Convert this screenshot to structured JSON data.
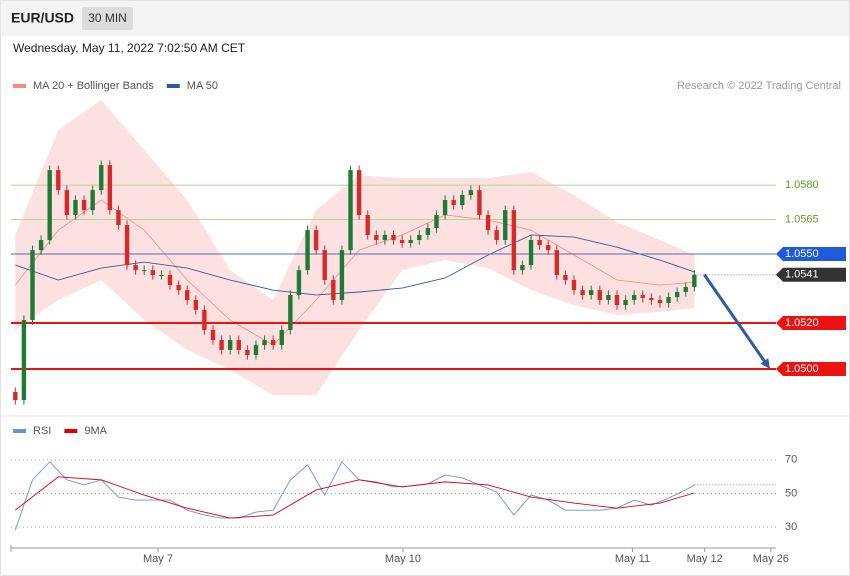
{
  "header": {
    "symbol": "EUR/USD",
    "interval": "30 MIN",
    "timestamp": "Wednesday, May 11, 2022 7:02:50 AM CET"
  },
  "chart_data": [
    {
      "type": "candlestick",
      "credit": "Research © 2022 Trading Central",
      "legend": "top-left",
      "xlim": [
        -0.5,
        88.5
      ],
      "ylim": [
        1.048,
        1.0617
      ],
      "candles": {
        "bull_color": "#1f7a35",
        "bear_color": "#d62a2a",
        "open": [
          1.049,
          1.04865,
          1.05213,
          1.05517,
          1.05561,
          1.05865,
          1.05778,
          1.0567,
          1.05735,
          1.05691,
          1.05778,
          1.05887,
          1.05691,
          1.05626,
          1.05452,
          1.0543,
          1.0543,
          1.05409,
          1.05409,
          1.05365,
          1.05343,
          1.053,
          1.05257,
          1.0517,
          1.05126,
          1.05083,
          1.05126,
          1.05083,
          1.05061,
          1.05104,
          1.05126,
          1.05104,
          1.0517,
          1.05322,
          1.0543,
          1.05604,
          1.05517,
          1.05387,
          1.053,
          1.05517,
          1.05865,
          1.0567,
          1.05583,
          1.05561,
          1.05583,
          1.05561,
          1.05548,
          1.05561,
          1.05583,
          1.05613,
          1.0567,
          1.05735,
          1.05713,
          1.05757,
          1.05778,
          1.0567,
          1.05604,
          1.05561,
          1.05691,
          1.0543,
          1.05452,
          1.05561,
          1.05539,
          1.05517,
          1.05409,
          1.05387,
          1.05343,
          1.05322,
          1.05343,
          1.053,
          1.05322,
          1.05278,
          1.053,
          1.05322,
          1.05309,
          1.053,
          1.05287,
          1.05313,
          1.05335,
          1.05357
        ],
        "high": [
          1.0492,
          1.05233,
          1.05537,
          1.05581,
          1.05885,
          1.05885,
          1.05798,
          1.05755,
          1.05755,
          1.05798,
          1.05907,
          1.05907,
          1.05711,
          1.05646,
          1.05472,
          1.0545,
          1.0545,
          1.05429,
          1.05429,
          1.05385,
          1.05363,
          1.0532,
          1.05277,
          1.0519,
          1.05146,
          1.05146,
          1.05146,
          1.05103,
          1.05124,
          1.05146,
          1.05146,
          1.0519,
          1.05342,
          1.0545,
          1.05624,
          1.05624,
          1.05537,
          1.05407,
          1.05537,
          1.05885,
          1.05885,
          1.0569,
          1.05603,
          1.05603,
          1.05603,
          1.05581,
          1.05581,
          1.05603,
          1.05633,
          1.0569,
          1.05755,
          1.05755,
          1.05777,
          1.05798,
          1.05798,
          1.0569,
          1.05624,
          1.05711,
          1.05711,
          1.05472,
          1.05581,
          1.05581,
          1.05559,
          1.05537,
          1.05429,
          1.05407,
          1.05363,
          1.05363,
          1.05363,
          1.05342,
          1.05342,
          1.0532,
          1.05342,
          1.05342,
          1.05329,
          1.0532,
          1.05333,
          1.05355,
          1.05377,
          1.0543
        ],
        "low": [
          1.04845,
          1.04845,
          1.05193,
          1.05497,
          1.05541,
          1.05758,
          1.0565,
          1.0565,
          1.05671,
          1.05671,
          1.05758,
          1.05671,
          1.05606,
          1.05432,
          1.0541,
          1.0541,
          1.05389,
          1.05389,
          1.05345,
          1.05323,
          1.0528,
          1.05237,
          1.0515,
          1.05106,
          1.05063,
          1.05063,
          1.05063,
          1.05041,
          1.05041,
          1.05084,
          1.05084,
          1.05084,
          1.0515,
          1.05302,
          1.0541,
          1.05497,
          1.05367,
          1.0528,
          1.0528,
          1.05497,
          1.0565,
          1.05563,
          1.05541,
          1.05541,
          1.05541,
          1.05528,
          1.05528,
          1.05541,
          1.05563,
          1.05593,
          1.0565,
          1.05693,
          1.05693,
          1.05737,
          1.0565,
          1.05584,
          1.05541,
          1.05541,
          1.0541,
          1.0541,
          1.05432,
          1.05519,
          1.05497,
          1.05389,
          1.05367,
          1.05323,
          1.05302,
          1.05302,
          1.0528,
          1.0528,
          1.05258,
          1.05258,
          1.0528,
          1.05289,
          1.0528,
          1.05267,
          1.05267,
          1.05293,
          1.05315,
          1.05337
        ],
        "close": [
          1.04865,
          1.05213,
          1.05517,
          1.05561,
          1.05865,
          1.05778,
          1.0567,
          1.05735,
          1.05691,
          1.05778,
          1.05887,
          1.05691,
          1.05626,
          1.05452,
          1.0543,
          1.0543,
          1.05409,
          1.05409,
          1.05365,
          1.05343,
          1.053,
          1.05257,
          1.0517,
          1.05126,
          1.05083,
          1.05126,
          1.05083,
          1.05061,
          1.05104,
          1.05126,
          1.05104,
          1.0517,
          1.05322,
          1.0543,
          1.05604,
          1.05517,
          1.05387,
          1.053,
          1.05517,
          1.05865,
          1.0567,
          1.05583,
          1.05561,
          1.05583,
          1.05561,
          1.05548,
          1.05561,
          1.05583,
          1.05613,
          1.0567,
          1.05735,
          1.05713,
          1.05757,
          1.05778,
          1.0567,
          1.05604,
          1.05561,
          1.05691,
          1.0543,
          1.05452,
          1.05561,
          1.05539,
          1.05517,
          1.05409,
          1.05387,
          1.05343,
          1.05322,
          1.05343,
          1.053,
          1.05322,
          1.05278,
          1.053,
          1.05322,
          1.05309,
          1.053,
          1.05287,
          1.05313,
          1.05335,
          1.05357,
          1.0541
        ]
      },
      "series": [
        {
          "name": "MA 20 + Bollinger Bands",
          "color": "#f28b82",
          "band_color": "#fde1e1",
          "x": [
            0,
            5,
            10,
            15,
            20,
            25,
            30,
            35,
            40,
            45,
            50,
            55,
            60,
            65,
            70,
            75,
            79
          ],
          "values": [
            1.05365,
            1.05604,
            1.05735,
            1.05604,
            1.05387,
            1.05213,
            1.05104,
            1.053,
            1.05517,
            1.05583,
            1.0567,
            1.05648,
            1.05604,
            1.05496,
            1.05387,
            1.05365,
            1.05378
          ],
          "upper": [
            1.05583,
            1.06039,
            1.0617,
            1.05952,
            1.05735,
            1.0543,
            1.053,
            1.05691,
            1.05843,
            1.0583,
            1.0583,
            1.0583,
            1.05857,
            1.05757,
            1.05639,
            1.05561,
            1.05496
          ],
          "lower": [
            1.0517,
            1.053,
            1.05387,
            1.05213,
            1.05083,
            1.04996,
            1.04887,
            1.04887,
            1.0517,
            1.0543,
            1.05474,
            1.05439,
            1.05343,
            1.05278,
            1.05235,
            1.05248,
            1.05265
          ]
        },
        {
          "name": "MA 50",
          "color": "#34589e",
          "x": [
            0,
            5,
            10,
            15,
            20,
            25,
            30,
            35,
            40,
            45,
            50,
            55,
            60,
            65,
            70,
            75,
            79
          ],
          "values": [
            1.05452,
            1.05387,
            1.05439,
            1.05465,
            1.05439,
            1.05387,
            1.05343,
            1.05322,
            1.05335,
            1.05352,
            1.05396,
            1.05496,
            1.05583,
            1.05574,
            1.0553,
            1.05474,
            1.05422
          ]
        }
      ],
      "levels": [
        {
          "value": 1.058,
          "label": "1.0580",
          "color": "#5a9e1e",
          "line_color": "#b5d59a",
          "style": "text",
          "line_width": 1
        },
        {
          "value": 1.0565,
          "label": "1.0565",
          "color": "#5a9e1e",
          "line_color": "#b5d59a",
          "style": "text",
          "line_width": 1
        },
        {
          "value": 1.055,
          "label": "1.0550",
          "color": "#1e5bdc",
          "line_color": "#4a6fc0",
          "style": "box",
          "line_width": 1
        },
        {
          "value": 1.0541,
          "label": "1.0541",
          "color": "#333333",
          "line_color": "#888888",
          "style": "box",
          "line_width": 1,
          "current": true
        },
        {
          "value": 1.052,
          "label": "1.0520",
          "color": "#ee1111",
          "line_color": "#ee1111",
          "style": "box",
          "line_width": 2
        },
        {
          "value": 1.05,
          "label": "1.0500",
          "color": "#ee1111",
          "line_color": "#ee1111",
          "style": "box",
          "line_width": 2,
          "target": true
        }
      ],
      "arrow_color": "#2f5b9e"
    },
    {
      "type": "line",
      "legend": "top-left",
      "xlim": [
        -0.5,
        88.5
      ],
      "ylim": [
        20,
        80
      ],
      "yticks": [
        70,
        50,
        30
      ],
      "grid": true,
      "xticks": [
        {
          "value": 16.6,
          "label": "May 7"
        },
        {
          "value": 45.1,
          "label": "May 10"
        },
        {
          "value": 71.8,
          "label": "May 11"
        },
        {
          "value": 80.2,
          "label": "May 12"
        },
        {
          "value": 87.9,
          "label": "May 26"
        }
      ],
      "series": [
        {
          "name": "RSI",
          "color": "#6c8ee0",
          "x": [
            0,
            2,
            4,
            6,
            8,
            10,
            12,
            14,
            16,
            18,
            20,
            22,
            24,
            26,
            28,
            30,
            32,
            34,
            36,
            38,
            40,
            42,
            44,
            46,
            48,
            50,
            52,
            54,
            56,
            58,
            60,
            62,
            64,
            66,
            68,
            70,
            72,
            74,
            76,
            78,
            79
          ],
          "values": [
            28.2,
            58.1,
            68.8,
            58.1,
            55.1,
            58.1,
            47.9,
            46.1,
            46.1,
            46.1,
            40.1,
            37.2,
            35.4,
            35.4,
            39.0,
            40.1,
            58.1,
            67.0,
            49.1,
            68.8,
            58.1,
            56.9,
            53.9,
            54.5,
            55.7,
            61.0,
            59.3,
            55.1,
            50.9,
            37.2,
            49.1,
            46.1,
            40.1,
            40.1,
            40.1,
            41.3,
            46.1,
            43.1,
            47.3,
            52.1,
            55.1
          ]
        },
        {
          "name": "9MA",
          "color": "#e00000",
          "x": [
            0,
            5,
            10,
            15,
            20,
            25,
            30,
            35,
            40,
            45,
            50,
            55,
            60,
            65,
            70,
            75,
            79
          ],
          "values": [
            40.1,
            59.9,
            58.1,
            49.1,
            41.3,
            35.4,
            37.2,
            52.1,
            58.1,
            53.9,
            56.9,
            55.1,
            47.9,
            44.3,
            41.3,
            44.3,
            50.3
          ]
        }
      ]
    }
  ]
}
